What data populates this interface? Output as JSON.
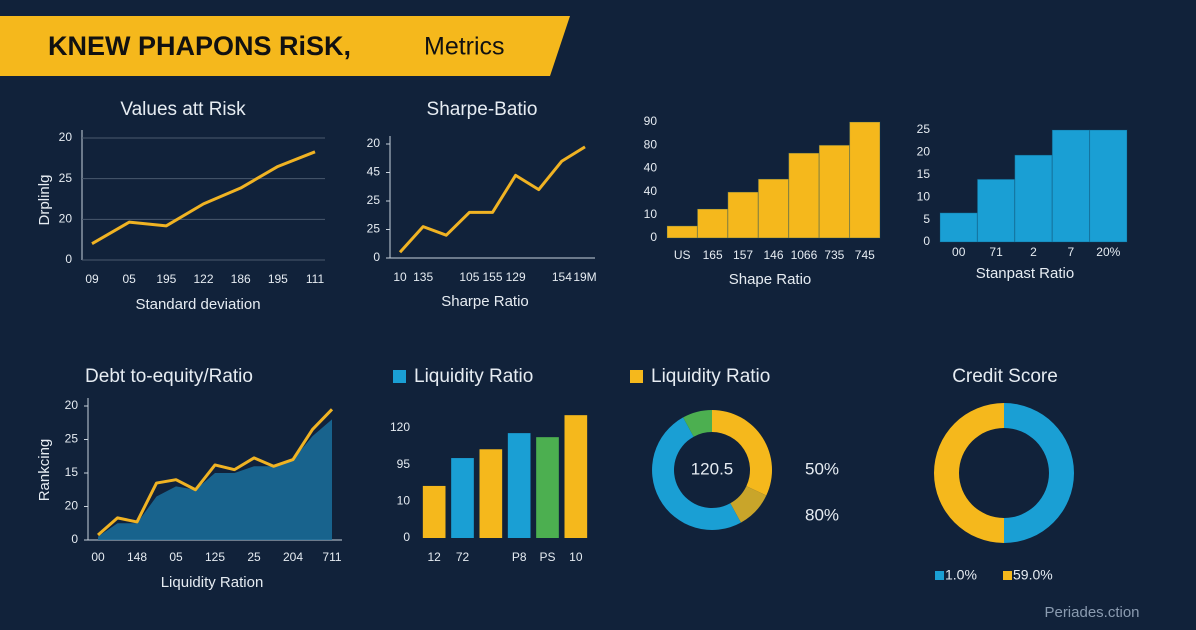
{
  "header": {
    "title": "KNEW  PHAPONS RiSK,",
    "title_suffix": "Metrics"
  },
  "footer": "Periades.ction",
  "chart_data": [
    {
      "type": "line",
      "title": "Values att Risk",
      "x_label": "Standard deviation",
      "y_label": "Drplinlg",
      "categories": [
        "09",
        "05",
        "195",
        "122",
        "186",
        "195",
        "111"
      ],
      "series": [
        {
          "color": "#f0b323",
          "values": [
            0.4,
            0.93,
            0.84,
            1.38,
            1.77,
            2.3,
            2.66
          ]
        }
      ],
      "ylim": [
        0,
        3
      ],
      "yticks": [
        {
          "value": 0,
          "label": "0"
        },
        {
          "value": 1,
          "label": "20"
        },
        {
          "value": 2,
          "label": "25"
        },
        {
          "value": 3,
          "label": "20"
        }
      ],
      "grid": true
    },
    {
      "type": "line",
      "title": "Sharpe-Batio",
      "x_label": "Sharpe Ratio",
      "categories": [
        "10",
        "135",
        null,
        "105",
        "155",
        "129",
        null,
        "154",
        "19M"
      ],
      "series": [
        {
          "color": "#f0b323",
          "values": [
            0.2,
            1.1,
            0.8,
            1.6,
            1.6,
            2.9,
            2.4,
            3.4,
            3.9
          ]
        }
      ],
      "ylim": [
        0,
        4
      ],
      "yticks": [
        {
          "value": 0,
          "label": "0"
        },
        {
          "value": 1,
          "label": "25"
        },
        {
          "value": 2,
          "label": "25"
        },
        {
          "value": 3,
          "label": "45"
        },
        {
          "value": 4,
          "label": "20"
        }
      ],
      "grid": false
    },
    {
      "type": "bar",
      "x_label": "Shape Ratio",
      "categories": [
        "US",
        "165",
        "157",
        "146",
        "1066",
        "735",
        "745"
      ],
      "values": [
        0.52,
        1.25,
        1.98,
        2.54,
        3.66,
        4.0,
        5.0
      ],
      "color": "#f5b81c",
      "ylim": [
        0,
        5
      ],
      "yticks": [
        {
          "value": 0,
          "label": "0"
        },
        {
          "value": 1,
          "label": "10"
        },
        {
          "value": 2,
          "label": "40"
        },
        {
          "value": 3,
          "label": "40"
        },
        {
          "value": 4,
          "label": "80"
        },
        {
          "value": 5,
          "label": "90"
        }
      ],
      "grid": false
    },
    {
      "type": "bar",
      "x_label": "Stanpast Ratio",
      "categories": [
        "00",
        "71",
        "2",
        "7",
        "20%"
      ],
      "values": [
        6.5,
        14,
        19.4,
        25,
        25
      ],
      "color": "#1a9fd4",
      "ylim": [
        0,
        25
      ],
      "yticks": [
        0,
        5,
        10,
        15,
        20,
        25
      ],
      "grid": false
    },
    {
      "type": "area",
      "title": "Debt to-equity/Ratio",
      "x_label": "Liquidity Ration",
      "y_label": "Rankcing",
      "categories": [
        "00",
        null,
        "148",
        null,
        "05",
        null,
        "125",
        null,
        "25",
        null,
        "204",
        null,
        "711"
      ],
      "series": [
        {
          "style": "area",
          "color": "#1a6f9c",
          "values": [
            0.1,
            0.5,
            0.5,
            1.3,
            1.6,
            1.5,
            2.0,
            2.0,
            2.2,
            2.2,
            2.4,
            3.1,
            3.6
          ]
        },
        {
          "style": "line",
          "color": "#f0b323",
          "values": [
            0.15,
            0.66,
            0.54,
            1.7,
            1.8,
            1.5,
            2.24,
            2.1,
            2.45,
            2.2,
            2.4,
            3.3,
            3.9
          ]
        }
      ],
      "ylim": [
        0,
        4
      ],
      "yticks": [
        {
          "value": 0,
          "label": "0"
        },
        {
          "value": 1,
          "label": "20"
        },
        {
          "value": 2,
          "label": "15"
        },
        {
          "value": 3,
          "label": "25"
        },
        {
          "value": 4,
          "label": "20"
        }
      ],
      "grid": false
    },
    {
      "type": "bar",
      "title": "Liquidity Ratio",
      "legend_color": "#1a9fd4",
      "categories": [
        "12",
        "72",
        null,
        "P8",
        "PS",
        "10"
      ],
      "values": [
        1.42,
        2.18,
        2.42,
        2.86,
        2.75,
        3.35
      ],
      "colors": [
        "#f5b81c",
        "#1a9fd4",
        "#f5b81c",
        "#1a9fd4",
        "#4caf50",
        "#f5b81c"
      ],
      "ylim": [
        0,
        3
      ],
      "yticks": [
        {
          "value": 0,
          "label": "0"
        },
        {
          "value": 1,
          "label": "10"
        },
        {
          "value": 2,
          "label": "95"
        },
        {
          "value": 3,
          "label": "120"
        }
      ],
      "grid": false
    },
    {
      "type": "donut",
      "title": "Liquidity Ratio",
      "legend_color": "#f5b81c",
      "values": [
        32,
        10,
        50,
        8
      ],
      "colors": [
        "#f5b81c",
        "#c9a52a",
        "#1a9fd4",
        "#4caf50"
      ],
      "annotations": [
        "120.5",
        "50%",
        "80%"
      ]
    },
    {
      "type": "donut",
      "title": "Credit Score",
      "series": [
        {
          "name": "1.0%",
          "color": "#1a9fd4",
          "values": [
            50
          ]
        },
        {
          "name": "59.0%",
          "color": "#f5b81c",
          "values": [
            50
          ]
        }
      ]
    }
  ]
}
